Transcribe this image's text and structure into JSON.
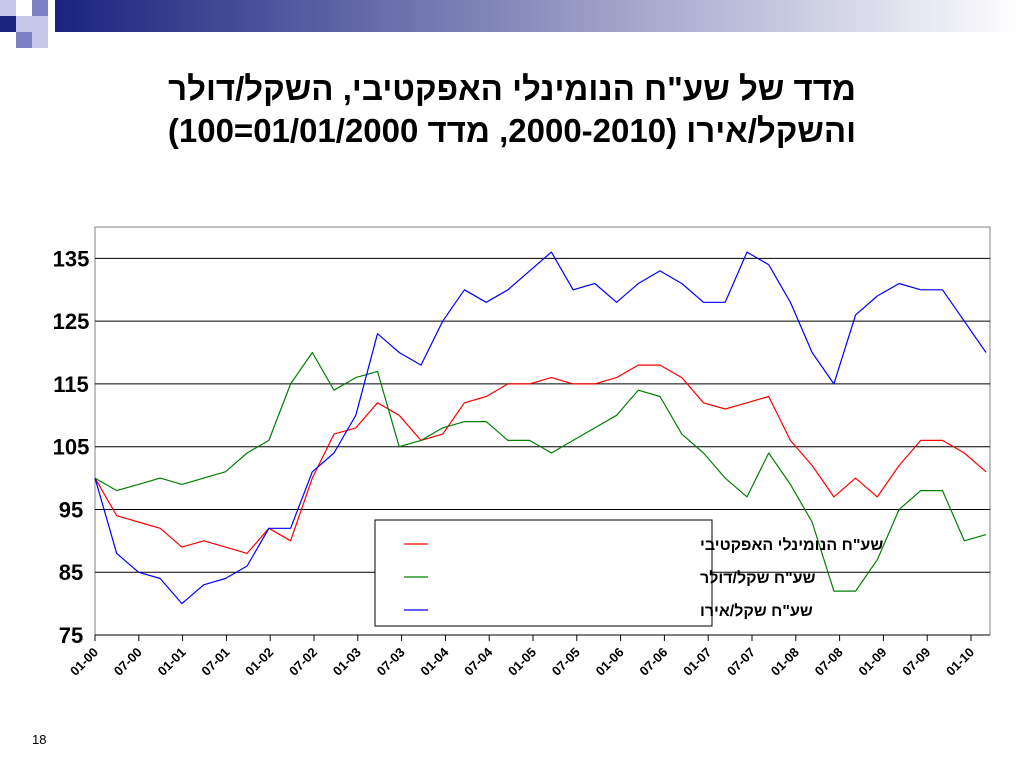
{
  "slide": {
    "title_lines": [
      "מדד של שע\"ח הנומינלי האפקטיבי, השקל/דולר",
      "והשקל/אירו (2000-2010, מדד 01/01/2000=100)"
    ],
    "slide_number": "18"
  },
  "colors": {
    "deco_dark": "#1a237e",
    "deco_mid": "#7b7fc4",
    "deco_light": "#c5c8e8",
    "series_effective": "#ff0000",
    "series_usd": "#008000",
    "series_eur": "#0000ff",
    "grid": "#000000"
  },
  "chart_data": {
    "type": "line",
    "title": "",
    "xlabel": "",
    "ylabel": "",
    "ylim": [
      75,
      140
    ],
    "yticks": [
      75,
      85,
      95,
      105,
      115,
      125,
      135
    ],
    "grid": "horizontal",
    "legend_position": "bottom-center",
    "x_range": [
      "01-00",
      "04-10"
    ],
    "x_tick_labels": [
      "01-00",
      "07-00",
      "01-01",
      "07-01",
      "01-02",
      "07-02",
      "01-03",
      "07-03",
      "01-04",
      "07-04",
      "01-05",
      "07-05",
      "01-06",
      "07-06",
      "01-07",
      "07-07",
      "01-08",
      "07-08",
      "01-09",
      "07-09",
      "01-10"
    ],
    "x": [
      "01-00",
      "04-00",
      "07-00",
      "10-00",
      "01-01",
      "04-01",
      "07-01",
      "10-01",
      "01-02",
      "04-02",
      "07-02",
      "10-02",
      "01-03",
      "04-03",
      "07-03",
      "10-03",
      "01-04",
      "04-04",
      "07-04",
      "10-04",
      "01-05",
      "04-05",
      "07-05",
      "10-05",
      "01-06",
      "04-06",
      "07-06",
      "10-06",
      "01-07",
      "04-07",
      "07-07",
      "10-07",
      "01-08",
      "04-08",
      "07-08",
      "10-08",
      "01-09",
      "04-09",
      "07-09",
      "10-09",
      "01-10",
      "04-10"
    ],
    "series": [
      {
        "name": "שע\"ח הנומינלי האפקטיבי",
        "color": "#ff0000",
        "values": [
          100,
          94,
          93,
          92,
          89,
          90,
          89,
          88,
          92,
          90,
          100,
          107,
          108,
          112,
          110,
          106,
          107,
          112,
          113,
          115,
          115,
          116,
          115,
          115,
          116,
          118,
          118,
          116,
          112,
          111,
          112,
          113,
          106,
          102,
          97,
          100,
          97,
          102,
          106,
          106,
          104,
          101
        ]
      },
      {
        "name": "שע\"ח שקל/דולר",
        "color": "#008000",
        "values": [
          100,
          98,
          99,
          100,
          99,
          100,
          101,
          104,
          106,
          115,
          120,
          114,
          116,
          117,
          105,
          106,
          108,
          109,
          109,
          106,
          106,
          104,
          106,
          108,
          110,
          114,
          113,
          107,
          104,
          100,
          97,
          104,
          99,
          93,
          82,
          82,
          87,
          95,
          98,
          98,
          90,
          91
        ]
      },
      {
        "name": "שע\"ח שקל/אירו",
        "color": "#0000ff",
        "values": [
          100,
          88,
          85,
          84,
          80,
          83,
          84,
          86,
          92,
          92,
          101,
          104,
          110,
          123,
          120,
          118,
          125,
          130,
          128,
          130,
          133,
          136,
          130,
          131,
          128,
          131,
          133,
          131,
          128,
          128,
          136,
          134,
          128,
          120,
          115,
          126,
          129,
          131,
          130,
          130,
          125,
          120
        ]
      }
    ]
  }
}
